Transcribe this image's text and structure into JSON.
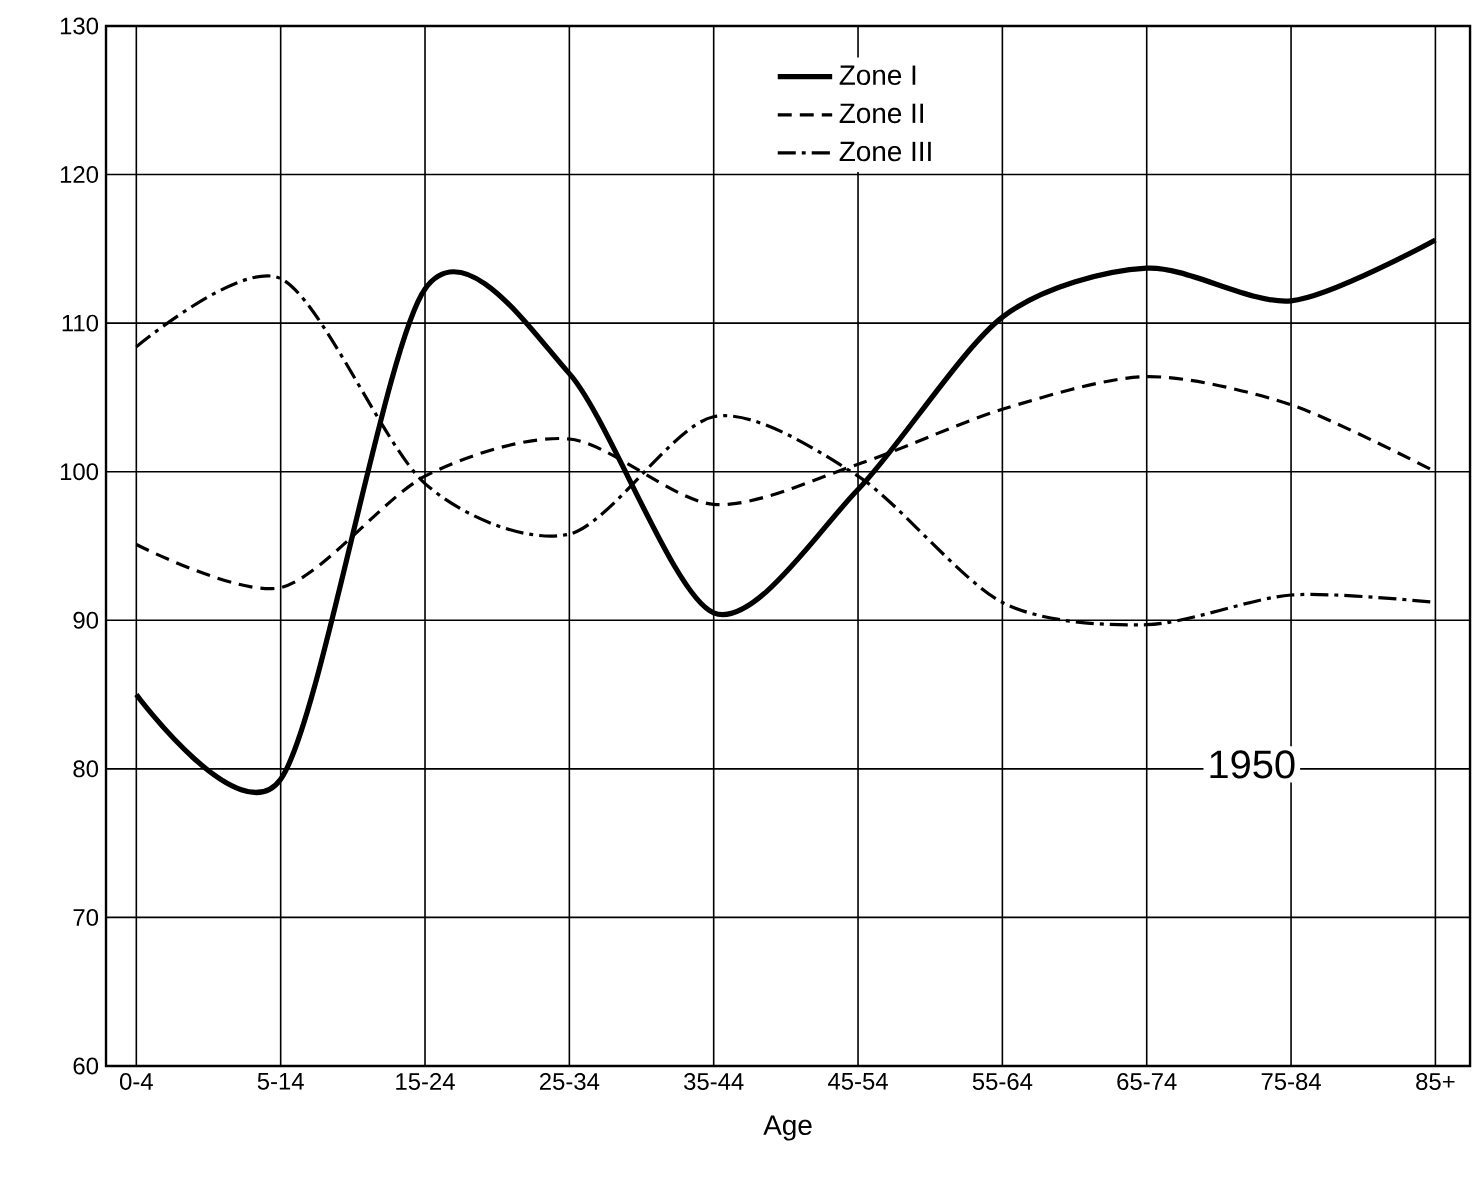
{
  "chart_data": {
    "type": "line",
    "xlabel": "Age",
    "categories": [
      "0-4",
      "5-14",
      "15-24",
      "25-34",
      "35-44",
      "45-54",
      "55-64",
      "65-74",
      "75-84",
      "85+"
    ],
    "series": [
      {
        "name": "Zone I",
        "color": "#000000",
        "line_style": "solid",
        "values": [
          85,
          79.3,
          112.3,
          106.6,
          90.5,
          98.8,
          110.4,
          113.7,
          111.5,
          115.6
        ]
      },
      {
        "name": "Zone II",
        "color": "#000000",
        "line_style": "dashed",
        "values": [
          95.1,
          92.2,
          99.7,
          102.2,
          97.8,
          100.5,
          104.2,
          106.4,
          104.5,
          100
        ]
      },
      {
        "name": "Zone III",
        "color": "#000000",
        "line_style": "dashdot",
        "values": [
          108.4,
          113,
          99.2,
          95.8,
          103.7,
          99.7,
          91.2,
          89.7,
          91.7,
          91.2
        ]
      }
    ],
    "ylim": [
      60,
      130
    ],
    "yticks": [
      60,
      70,
      80,
      90,
      100,
      110,
      120,
      130
    ],
    "grid": true,
    "legend": "top",
    "annotations": [
      "1950"
    ]
  }
}
